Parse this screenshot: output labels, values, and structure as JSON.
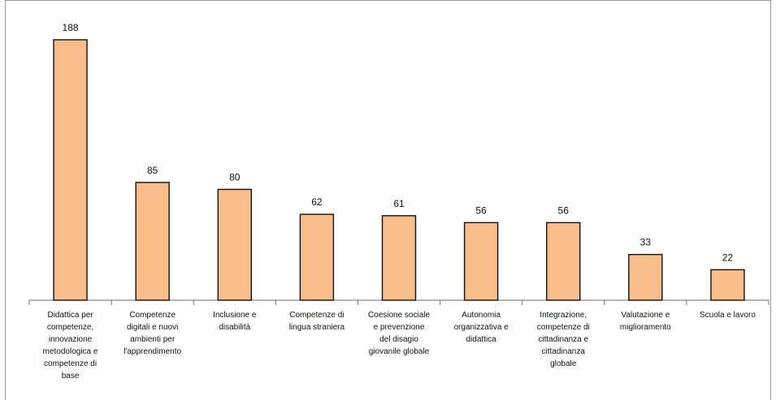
{
  "chart_data": {
    "type": "bar",
    "categories": [
      "Didattica per competenze, innovazione metodologica e competenze di base",
      "Competenze digitali e nuovi ambienti per l'apprendimento",
      "Inclusione e disabilità",
      "Competenze di lingua straniera",
      "Coesione sociale e prevenzione del disagio giovanile globale",
      "Autonomia organizzativa e didattica",
      "Integrazione, competenze di cittadinanza e cittadinanza globale",
      "Valutazione e miglioramento",
      "Scuola e lavoro"
    ],
    "category_lines": [
      [
        "Didattica per",
        "competenze,",
        "innovazione",
        "metodologica e",
        "competenze di",
        "base"
      ],
      [
        "Competenze",
        "digitali e nuovi",
        "ambienti per",
        "l'apprendimento"
      ],
      [
        "Inclusione e",
        "disabilità"
      ],
      [
        "Competenze di",
        "lingua straniera"
      ],
      [
        "Coesione sociale",
        "e prevenzione",
        "del disagio",
        "giovanile globale"
      ],
      [
        "Autonomia",
        "organizzativa e",
        "didattica"
      ],
      [
        "Integrazione,",
        "competenze di",
        "cittadinanza e",
        "cittadinanza",
        "globale"
      ],
      [
        "Valutazione e",
        "miglioramento"
      ],
      [
        "Scuola e lavoro"
      ]
    ],
    "values": [
      188,
      85,
      80,
      62,
      61,
      56,
      56,
      33,
      22
    ],
    "value_labels": [
      "188",
      "85",
      "80",
      "62",
      "61",
      "56",
      "56",
      "33",
      "22"
    ],
    "title": "",
    "xlabel": "",
    "ylabel": "",
    "ylim": [
      0,
      200
    ],
    "grid": false,
    "legend": "none",
    "colors": {
      "bar_fill": "#f9bd8b",
      "bar_stroke": "#111111",
      "axis": "#6f6f6f"
    }
  }
}
